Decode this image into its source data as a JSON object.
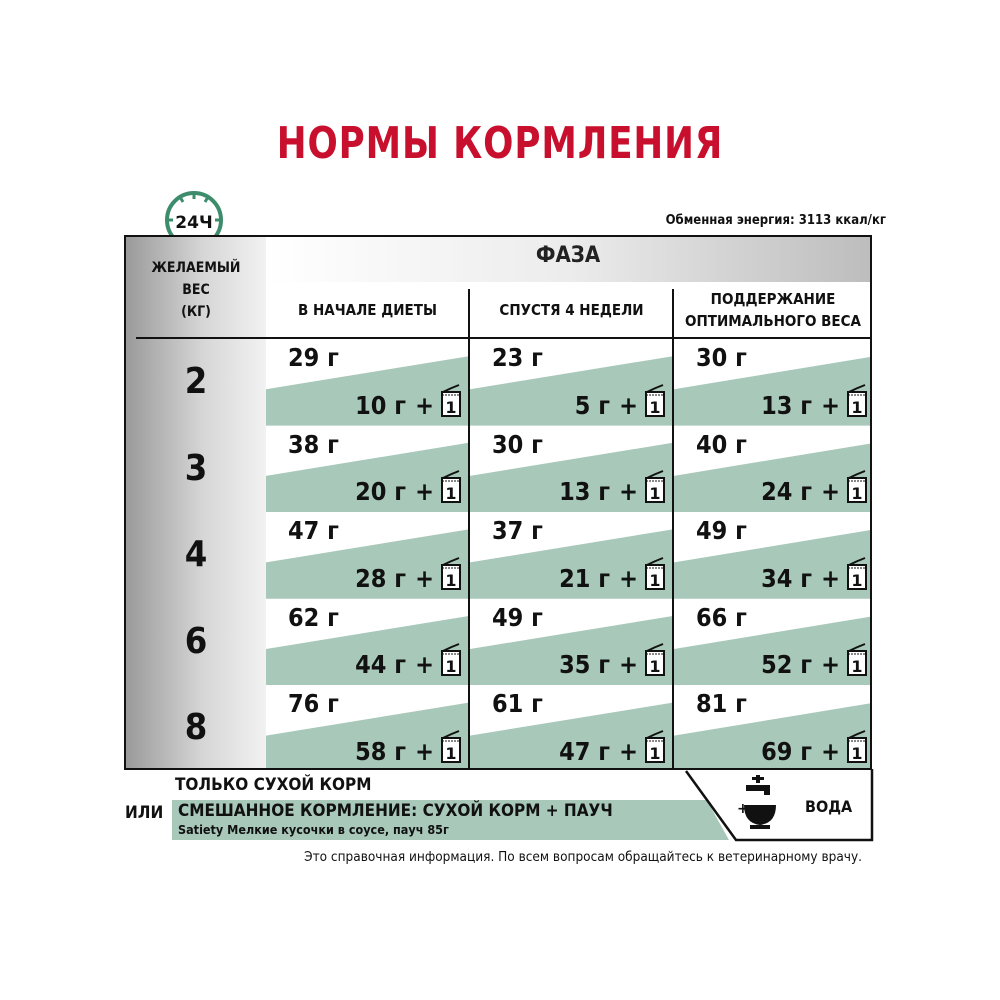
{
  "title": "НОРМЫ КОРМЛЕНИЯ",
  "energy": "Обменная энергия: 3113 ккал/кг",
  "clock_label": "24Ч",
  "table": {
    "weight_header": [
      "ЖЕЛАЕМЫЙ",
      "ВЕС",
      "(КГ)"
    ],
    "phase_header": "ФАЗА",
    "columns": [
      "В НАЧАЛЕ ДИЕТЫ",
      "СПУСТЯ 4 НЕДЕЛИ",
      "ПОДДЕРЖАНИЕ ОПТИМАЛЬНОГО ВЕСА"
    ],
    "plus": "+",
    "pouch_count": "1",
    "rows": [
      {
        "weight": "2",
        "cells": [
          {
            "dry": "29 г",
            "wet": "10 г"
          },
          {
            "dry": "23 г",
            "wet": "5 г"
          },
          {
            "dry": "30 г",
            "wet": "13 г"
          }
        ]
      },
      {
        "weight": "3",
        "cells": [
          {
            "dry": "38 г",
            "wet": "20 г"
          },
          {
            "dry": "30 г",
            "wet": "13 г"
          },
          {
            "dry": "40 г",
            "wet": "24 г"
          }
        ]
      },
      {
        "weight": "4",
        "cells": [
          {
            "dry": "47 г",
            "wet": "28 г"
          },
          {
            "dry": "37 г",
            "wet": "21 г"
          },
          {
            "dry": "49 г",
            "wet": "34 г"
          }
        ]
      },
      {
        "weight": "6",
        "cells": [
          {
            "dry": "62 г",
            "wet": "44 г"
          },
          {
            "dry": "49 г",
            "wet": "35 г"
          },
          {
            "dry": "66 г",
            "wet": "52 г"
          }
        ]
      },
      {
        "weight": "8",
        "cells": [
          {
            "dry": "76 г",
            "wet": "58 г"
          },
          {
            "dry": "61 г",
            "wet": "47 г"
          },
          {
            "dry": "81 г",
            "wet": "69 г"
          }
        ]
      }
    ]
  },
  "legend": {
    "dry_only": "ТОЛЬКО СУХОЙ КОРМ",
    "or": "ИЛИ",
    "mixed": "СМЕШАННОЕ КОРМЛЕНИЕ: СУХОЙ КОРМ + ПАУЧ",
    "mixed_product": "Satiety Мелкие кусочки в соусе, пауч 85г",
    "water_plus": "+",
    "water": "ВОДА"
  },
  "note": "Это справочная информация. По всем вопросам обращайтесь к ветеринарному врачу.",
  "colors": {
    "title": "#c8102e",
    "green": "#a8c8b9",
    "clock": "#3d8c6c"
  }
}
